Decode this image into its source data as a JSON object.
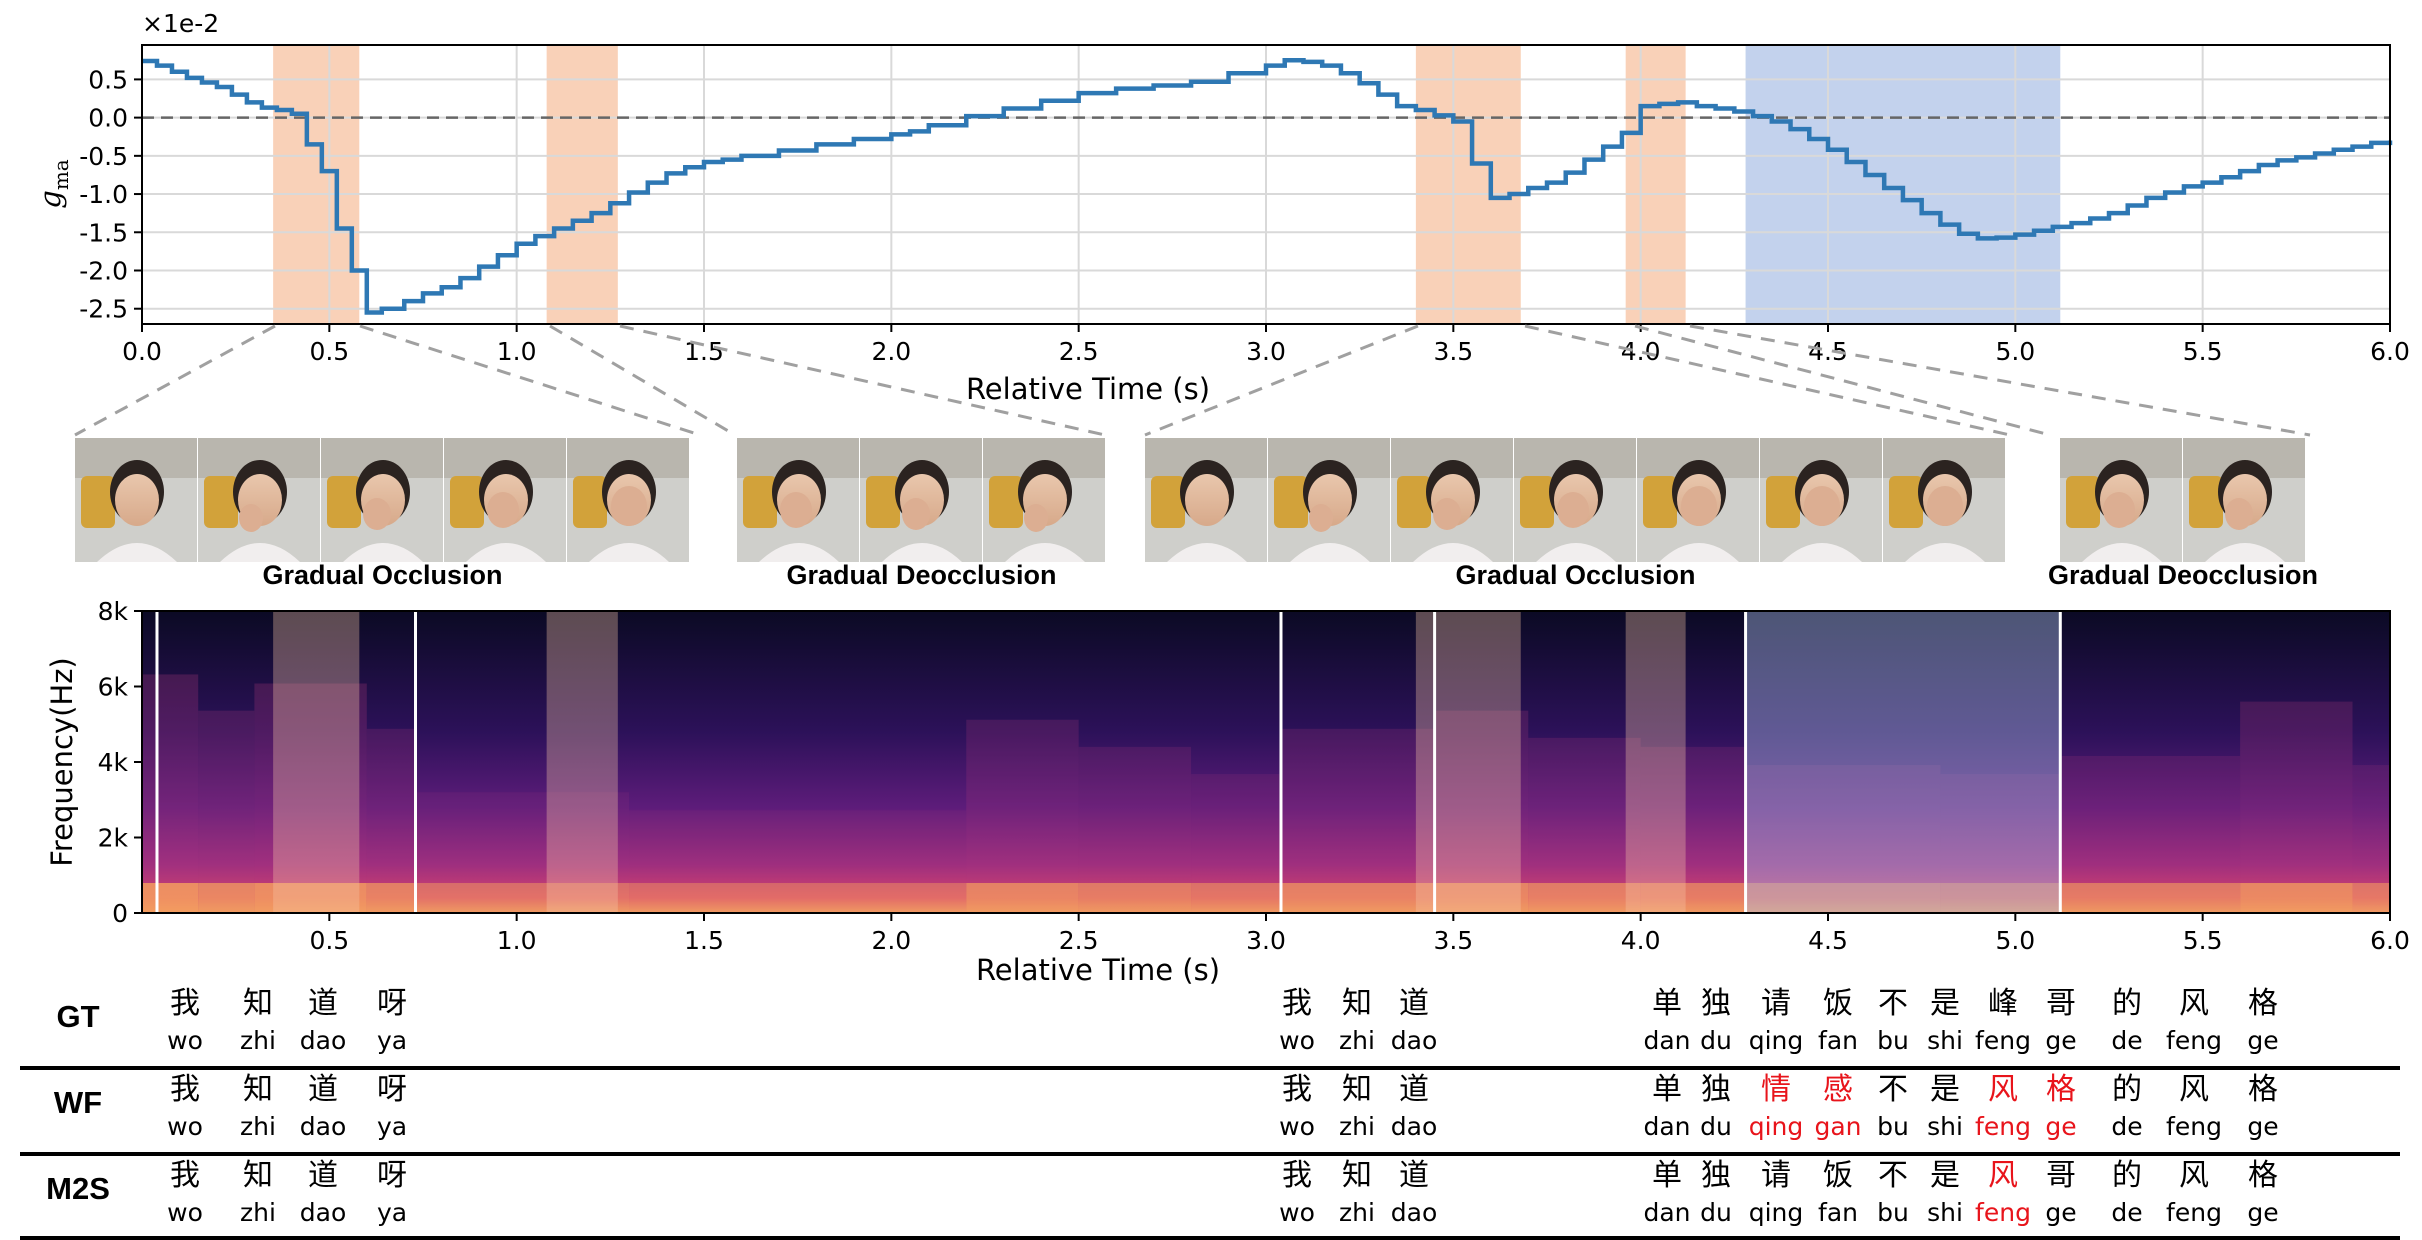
{
  "chart_data": [
    {
      "type": "line",
      "step": true,
      "offset_text": "×1e-2",
      "ylabel": "g_ma",
      "ylabel_main": "g",
      "ylabel_sub": "ma",
      "xlabel": "Relative Time (s)",
      "xlim": [
        0.0,
        6.0
      ],
      "ylim": [
        -2.7,
        0.95
      ],
      "xticks": [
        "0.0",
        "0.5",
        "1.0",
        "1.5",
        "2.0",
        "2.5",
        "3.0",
        "3.5",
        "4.0",
        "4.5",
        "5.0",
        "5.5",
        "6.0"
      ],
      "yticks": [
        "0.5",
        "0.0",
        "-0.5",
        "-1.0",
        "-1.5",
        "-2.0",
        "-2.5"
      ],
      "ytick_values": [
        0.5,
        0.0,
        -0.5,
        -1.0,
        -1.5,
        -2.0,
        -2.5
      ],
      "grid": true,
      "reference_line": {
        "y": 0.0,
        "style": "dashed"
      },
      "line_color": "#2e78b4",
      "orange_spans": [
        [
          0.35,
          0.58
        ],
        [
          1.08,
          1.27
        ],
        [
          3.4,
          3.68
        ],
        [
          3.96,
          4.12
        ]
      ],
      "blue_spans": [
        [
          4.28,
          5.12
        ]
      ],
      "series": [
        {
          "x": [
            0.0,
            0.04,
            0.08,
            0.12,
            0.16,
            0.2,
            0.24,
            0.28,
            0.32,
            0.36,
            0.4,
            0.44,
            0.48,
            0.52,
            0.56,
            0.6,
            0.64,
            0.7,
            0.75,
            0.8,
            0.85,
            0.9,
            0.95,
            1.0,
            1.05,
            1.1,
            1.15,
            1.2,
            1.25,
            1.3,
            1.35,
            1.4,
            1.45,
            1.5,
            1.55,
            1.6,
            1.7,
            1.8,
            1.9,
            2.0,
            2.05,
            2.1,
            2.2,
            2.3,
            2.4,
            2.5,
            2.6,
            2.7,
            2.8,
            2.9,
            3.0,
            3.05,
            3.1,
            3.15,
            3.2,
            3.25,
            3.3,
            3.35,
            3.4,
            3.45,
            3.5,
            3.55,
            3.6,
            3.65,
            3.7,
            3.75,
            3.8,
            3.85,
            3.9,
            3.95,
            4.0,
            4.05,
            4.1,
            4.15,
            4.2,
            4.25,
            4.3,
            4.35,
            4.4,
            4.45,
            4.5,
            4.55,
            4.6,
            4.65,
            4.7,
            4.75,
            4.8,
            4.85,
            4.9,
            4.95,
            5.0,
            5.05,
            5.1,
            5.15,
            5.2,
            5.25,
            5.3,
            5.35,
            5.4,
            5.45,
            5.5,
            5.55,
            5.6,
            5.65,
            5.7,
            5.75,
            5.8,
            5.85,
            5.9,
            5.95,
            6.0
          ],
          "y": [
            0.74,
            0.68,
            0.6,
            0.52,
            0.46,
            0.4,
            0.3,
            0.2,
            0.13,
            0.1,
            0.05,
            -0.35,
            -0.7,
            -1.45,
            -2.0,
            -2.55,
            -2.5,
            -2.4,
            -2.3,
            -2.22,
            -2.1,
            -1.95,
            -1.8,
            -1.65,
            -1.55,
            -1.45,
            -1.35,
            -1.25,
            -1.12,
            -0.98,
            -0.85,
            -0.73,
            -0.65,
            -0.58,
            -0.55,
            -0.5,
            -0.43,
            -0.35,
            -0.28,
            -0.22,
            -0.18,
            -0.1,
            0.02,
            0.12,
            0.22,
            0.32,
            0.38,
            0.42,
            0.47,
            0.58,
            0.68,
            0.75,
            0.73,
            0.68,
            0.58,
            0.45,
            0.3,
            0.15,
            0.1,
            0.03,
            -0.05,
            -0.6,
            -1.05,
            -1.0,
            -0.92,
            -0.85,
            -0.72,
            -0.55,
            -0.38,
            -0.2,
            0.15,
            0.18,
            0.2,
            0.15,
            0.12,
            0.08,
            0.02,
            -0.05,
            -0.15,
            -0.28,
            -0.42,
            -0.58,
            -0.75,
            -0.92,
            -1.08,
            -1.25,
            -1.4,
            -1.52,
            -1.58,
            -1.57,
            -1.53,
            -1.48,
            -1.43,
            -1.38,
            -1.32,
            -1.25,
            -1.15,
            -1.05,
            -0.98,
            -0.9,
            -0.85,
            -0.78,
            -0.7,
            -0.62,
            -0.56,
            -0.52,
            -0.47,
            -0.42,
            -0.38,
            -0.33,
            -0.3
          ]
        }
      ]
    },
    {
      "type": "heatmap",
      "ylabel": "Frequency(Hz)",
      "xlabel": "Relative Time (s)",
      "xlim": [
        0.0,
        6.0
      ],
      "xticks": [
        "0.5",
        "1.0",
        "1.5",
        "2.0",
        "2.5",
        "3.0",
        "3.5",
        "4.0",
        "4.5",
        "5.0",
        "5.5",
        "6.0"
      ],
      "yticks": [
        "8k",
        "6k",
        "4k",
        "2k",
        "0"
      ],
      "colormap": "magma",
      "white_lines": [
        0.04,
        0.73,
        3.04,
        3.45,
        4.28,
        5.12
      ],
      "orange_spans": [
        [
          0.35,
          0.58
        ],
        [
          1.08,
          1.27
        ],
        [
          3.4,
          3.68
        ],
        [
          3.96,
          4.12
        ]
      ],
      "blue_spans": [
        [
          4.28,
          5.12
        ]
      ]
    }
  ],
  "frame_groups": [
    {
      "label": "Gradual Occlusion",
      "frames": 5
    },
    {
      "label": "Gradual Deocclusion",
      "frames": 3
    },
    {
      "label": "Gradual Occlusion",
      "frames": 7
    },
    {
      "label": "Gradual Deocclusion",
      "frames": 2
    }
  ],
  "transcripts": [
    {
      "label": "GT",
      "segments": [
        {
          "chars": [
            {
              "hz": "我",
              "py": "wo"
            },
            {
              "hz": "知",
              "py": "zhi"
            },
            {
              "hz": "道",
              "py": "dao"
            },
            {
              "hz": "呀",
              "py": "ya"
            }
          ]
        },
        {
          "chars": [
            {
              "hz": "我",
              "py": "wo"
            },
            {
              "hz": "知",
              "py": "zhi"
            },
            {
              "hz": "道",
              "py": "dao"
            }
          ]
        },
        {
          "chars": [
            {
              "hz": "单",
              "py": "dan"
            },
            {
              "hz": "独",
              "py": "du"
            },
            {
              "hz": "请",
              "py": "qing"
            },
            {
              "hz": "饭",
              "py": "fan"
            },
            {
              "hz": "不",
              "py": "bu"
            },
            {
              "hz": "是",
              "py": "shi"
            },
            {
              "hz": "峰",
              "py": "feng"
            },
            {
              "hz": "哥",
              "py": "ge"
            },
            {
              "hz": "的",
              "py": "de"
            },
            {
              "hz": "风",
              "py": "feng"
            },
            {
              "hz": "格",
              "py": "ge"
            }
          ]
        }
      ]
    },
    {
      "label": "WF",
      "segments": [
        {
          "chars": [
            {
              "hz": "我",
              "py": "wo"
            },
            {
              "hz": "知",
              "py": "zhi"
            },
            {
              "hz": "道",
              "py": "dao"
            },
            {
              "hz": "呀",
              "py": "ya"
            }
          ]
        },
        {
          "chars": [
            {
              "hz": "我",
              "py": "wo"
            },
            {
              "hz": "知",
              "py": "zhi"
            },
            {
              "hz": "道",
              "py": "dao"
            }
          ]
        },
        {
          "chars": [
            {
              "hz": "单",
              "py": "dan"
            },
            {
              "hz": "独",
              "py": "du"
            },
            {
              "hz": "情",
              "py": "qing",
              "err": true
            },
            {
              "hz": "感",
              "py": "gan",
              "err": true
            },
            {
              "hz": "不",
              "py": "bu"
            },
            {
              "hz": "是",
              "py": "shi"
            },
            {
              "hz": "风",
              "py": "feng",
              "err": true
            },
            {
              "hz": "格",
              "py": "ge",
              "err": true
            },
            {
              "hz": "的",
              "py": "de"
            },
            {
              "hz": "风",
              "py": "feng"
            },
            {
              "hz": "格",
              "py": "ge"
            }
          ]
        }
      ]
    },
    {
      "label": "M2S",
      "segments": [
        {
          "chars": [
            {
              "hz": "我",
              "py": "wo"
            },
            {
              "hz": "知",
              "py": "zhi"
            },
            {
              "hz": "道",
              "py": "dao"
            },
            {
              "hz": "呀",
              "py": "ya"
            }
          ]
        },
        {
          "chars": [
            {
              "hz": "我",
              "py": "wo"
            },
            {
              "hz": "知",
              "py": "zhi"
            },
            {
              "hz": "道",
              "py": "dao"
            }
          ]
        },
        {
          "chars": [
            {
              "hz": "单",
              "py": "dan"
            },
            {
              "hz": "独",
              "py": "du"
            },
            {
              "hz": "请",
              "py": "qing"
            },
            {
              "hz": "饭",
              "py": "fan"
            },
            {
              "hz": "不",
              "py": "bu"
            },
            {
              "hz": "是",
              "py": "shi"
            },
            {
              "hz": "风",
              "py": "feng",
              "err": true
            },
            {
              "hz": "哥",
              "py": "ge"
            },
            {
              "hz": "的",
              "py": "de"
            },
            {
              "hz": "风",
              "py": "feng"
            },
            {
              "hz": "格",
              "py": "ge"
            }
          ]
        }
      ]
    }
  ],
  "colors": {
    "orange_span": "#f7c6a6",
    "blue_span": "#a9bfe6",
    "error_text": "#e8141b",
    "grid": "#d9d9d9"
  }
}
